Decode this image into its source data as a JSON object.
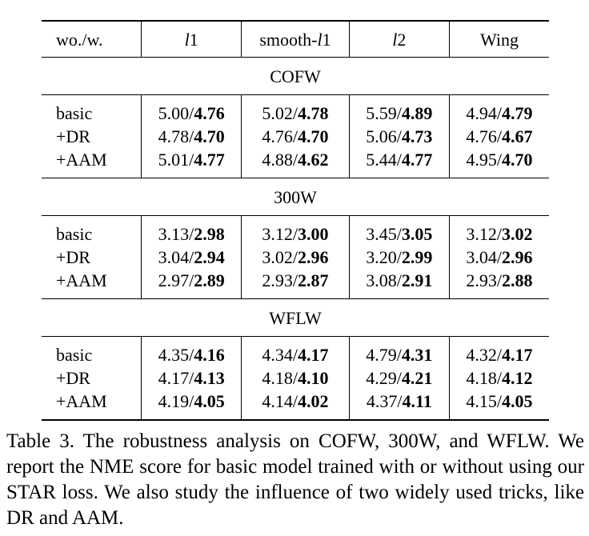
{
  "table": {
    "header": {
      "corner": "wo./w.",
      "cols": [
        {
          "pre": "",
          "ital": "l",
          "post": "1"
        },
        {
          "pre": "smooth-",
          "ital": "l",
          "post": "1"
        },
        {
          "pre": "",
          "ital": "l",
          "post": "2"
        },
        {
          "pre": "Wing",
          "ital": "",
          "post": ""
        }
      ]
    },
    "datasets": [
      {
        "name": "COFW",
        "rows": [
          {
            "label": "basic",
            "cells": [
              [
                "5.00/",
                "4.76"
              ],
              [
                "5.02/",
                "4.78"
              ],
              [
                "5.59/",
                "4.89"
              ],
              [
                "4.94/",
                "4.79"
              ]
            ]
          },
          {
            "label": "+DR",
            "cells": [
              [
                "4.78/",
                "4.70"
              ],
              [
                "4.76/",
                "4.70"
              ],
              [
                "5.06/",
                "4.73"
              ],
              [
                "4.76/",
                "4.67"
              ]
            ]
          },
          {
            "label": "+AAM",
            "cells": [
              [
                "5.01/",
                "4.77"
              ],
              [
                "4.88/",
                "4.62"
              ],
              [
                "5.44/",
                "4.77"
              ],
              [
                "4.95/",
                "4.70"
              ]
            ]
          }
        ]
      },
      {
        "name": "300W",
        "rows": [
          {
            "label": "basic",
            "cells": [
              [
                "3.13/",
                "2.98"
              ],
              [
                "3.12/",
                "3.00"
              ],
              [
                "3.45/",
                "3.05"
              ],
              [
                "3.12/",
                "3.02"
              ]
            ]
          },
          {
            "label": "+DR",
            "cells": [
              [
                "3.04/",
                "2.94"
              ],
              [
                "3.02/",
                "2.96"
              ],
              [
                "3.20/",
                "2.99"
              ],
              [
                "3.04/",
                "2.96"
              ]
            ]
          },
          {
            "label": "+AAM",
            "cells": [
              [
                "2.97/",
                "2.89"
              ],
              [
                "2.93/",
                "2.87"
              ],
              [
                "3.08/",
                "2.91"
              ],
              [
                "2.93/",
                "2.88"
              ]
            ]
          }
        ]
      },
      {
        "name": "WFLW",
        "rows": [
          {
            "label": "basic",
            "cells": [
              [
                "4.35/",
                "4.16"
              ],
              [
                "4.34/",
                "4.17"
              ],
              [
                "4.79/",
                "4.31"
              ],
              [
                "4.32/",
                "4.17"
              ]
            ]
          },
          {
            "label": "+DR",
            "cells": [
              [
                "4.17/",
                "4.13"
              ],
              [
                "4.18/",
                "4.10"
              ],
              [
                "4.29/",
                "4.21"
              ],
              [
                "4.18/",
                "4.12"
              ]
            ]
          },
          {
            "label": "+AAM",
            "cells": [
              [
                "4.19/",
                "4.05"
              ],
              [
                "4.14/",
                "4.02"
              ],
              [
                "4.37/",
                "4.11"
              ],
              [
                "4.15/",
                "4.05"
              ]
            ]
          }
        ]
      }
    ]
  },
  "caption": "Table 3. The robustness analysis on COFW, 300W, and WFLW. We report the NME score for basic model trained with or without using our STAR loss. We also study the influence of two widely used tricks, like DR and AAM."
}
